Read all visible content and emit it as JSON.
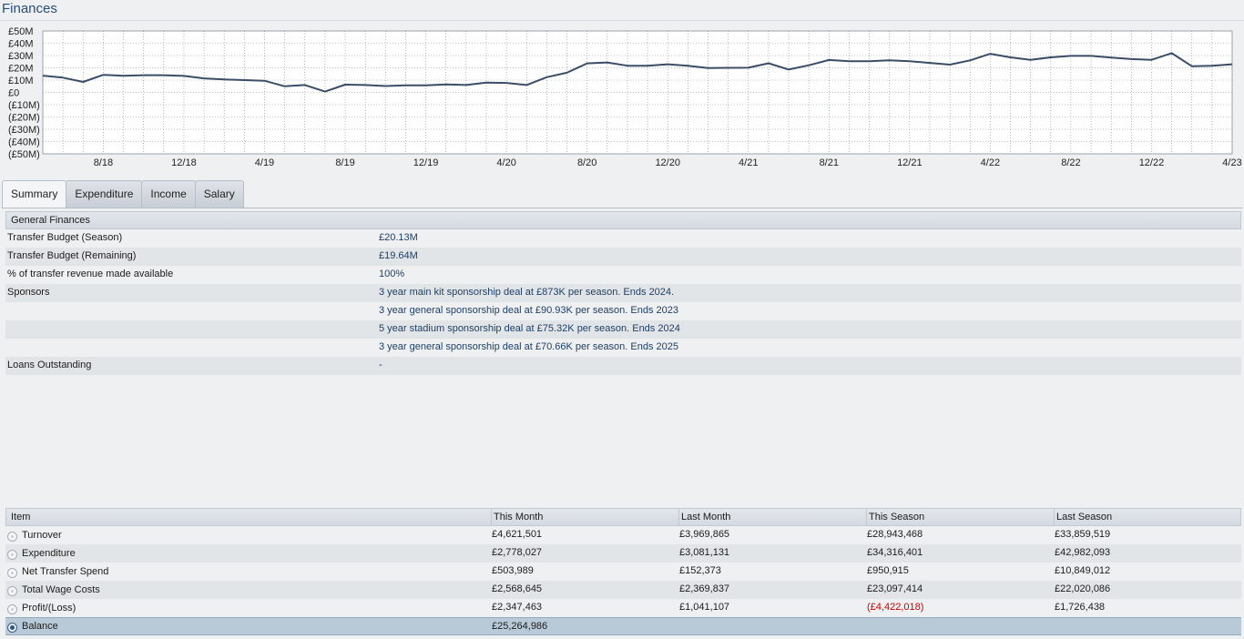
{
  "page": {
    "title": "Finances"
  },
  "chart_data": {
    "type": "line",
    "title": "",
    "ylabel": "",
    "xlabel": "",
    "ylim": [
      -50,
      50
    ],
    "ytick_labels": [
      "£50M",
      "£40M",
      "£30M",
      "£20M",
      "£10M",
      "£0",
      "(£10M)",
      "(£20M)",
      "(£30M)",
      "(£40M)",
      "(£50M)"
    ],
    "xtick_labels": [
      "8/18",
      "12/18",
      "4/19",
      "8/19",
      "12/19",
      "4/20",
      "8/20",
      "12/20",
      "4/21",
      "8/21",
      "12/21",
      "4/22",
      "8/22",
      "12/22",
      "4/23"
    ],
    "grid": true,
    "color": "#3b4d66",
    "series": [
      {
        "values": [
          13.6,
          12,
          8.5,
          14.3,
          13.5,
          14,
          14,
          13.4,
          11.4,
          10.5,
          10,
          9.5,
          5,
          6,
          0.7,
          6.3,
          6,
          5.2,
          5.8,
          5.8,
          6.5,
          6,
          7.9,
          7.7,
          6,
          12.4,
          16,
          23.6,
          24.4,
          21.7,
          21.7,
          22.9,
          21.7,
          19.8,
          20,
          20.1,
          23.7,
          18.6,
          22.1,
          26.4,
          25.3,
          25.3,
          26.1,
          25.3,
          24,
          22.6,
          26.1,
          31.4,
          28.5,
          26.5,
          28.5,
          29.7,
          29.7,
          28.4,
          27.1,
          26.5,
          31.9,
          21.3,
          21.7,
          22.9
        ]
      }
    ]
  },
  "tabs": [
    {
      "label": "Summary",
      "active": true
    },
    {
      "label": "Expenditure",
      "active": false
    },
    {
      "label": "Income",
      "active": false
    },
    {
      "label": "Salary",
      "active": false
    }
  ],
  "general": {
    "header": "General Finances",
    "rows": [
      {
        "label": "Transfer Budget (Season)",
        "value": "£20.13M"
      },
      {
        "label": "Transfer Budget (Remaining)",
        "value": "£19.64M"
      },
      {
        "label": "% of transfer revenue made available",
        "value": "100%"
      },
      {
        "label": "Sponsors",
        "value": "3 year main kit sponsorship deal at £873K per season. Ends 2024."
      },
      {
        "label": "",
        "value": "3 year general sponsorship deal at £90.93K per season. Ends 2023"
      },
      {
        "label": "",
        "value": "5 year stadium sponsorship deal at £75.32K per season. Ends 2024"
      },
      {
        "label": "",
        "value": "3 year general sponsorship deal at £70.66K per season. Ends 2025"
      },
      {
        "label": "Loans Outstanding",
        "value": "-"
      }
    ]
  },
  "table": {
    "headers": [
      "Item",
      "This Month",
      "Last Month",
      "This Season",
      "Last Season"
    ],
    "rows": [
      {
        "item": "Turnover",
        "this_month": "£4,621,501",
        "last_month": "£3,969,865",
        "this_season": "£28,943,468",
        "last_season": "£33,859,519"
      },
      {
        "item": "Expenditure",
        "this_month": "£2,778,027",
        "last_month": "£3,081,131",
        "this_season": "£34,316,401",
        "last_season": "£42,982,093"
      },
      {
        "item": "Net Transfer Spend",
        "this_month": "£503,989",
        "last_month": "£152,373",
        "this_season": "£950,915",
        "last_season": "£10,849,012"
      },
      {
        "item": "Total Wage Costs",
        "this_month": "£2,568,645",
        "last_month": "£2,369,837",
        "this_season": "£23,097,414",
        "last_season": "£22,020,086"
      },
      {
        "item": "Profit/(Loss)",
        "this_month": "£2,347,463",
        "last_month": "£1,041,107",
        "this_season": "(£4,422,018)",
        "last_season": "£1,726,438"
      },
      {
        "item": "Balance",
        "this_month": "£25,264,986",
        "last_month": "",
        "this_season": "",
        "last_season": ""
      }
    ],
    "negative_color": "#cc0000",
    "selected_row": "Balance"
  }
}
